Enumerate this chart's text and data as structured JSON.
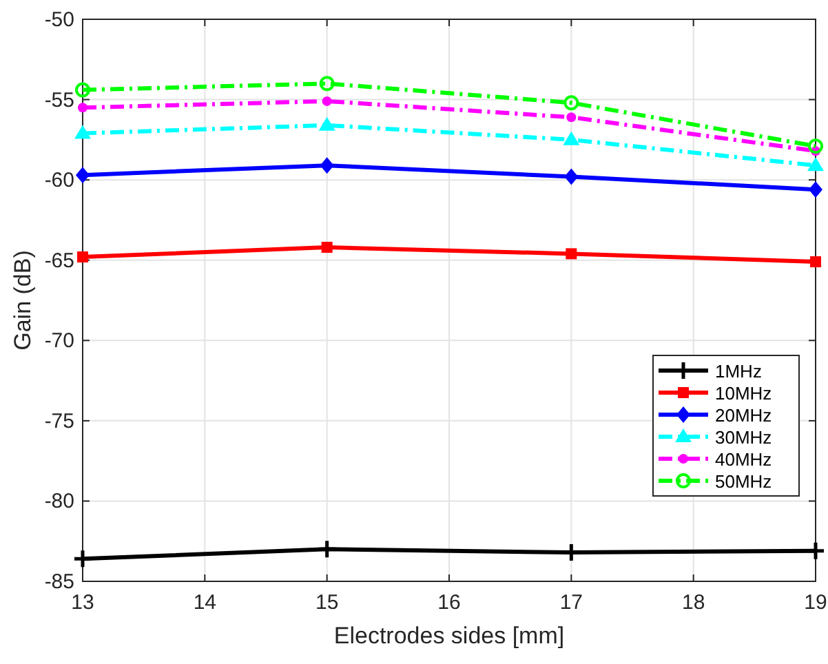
{
  "chart_data": {
    "type": "line",
    "xlabel": "Electrodes sides [mm]",
    "ylabel": "Gain (dB)",
    "x": [
      13,
      15,
      17,
      19
    ],
    "xlim": [
      13,
      19
    ],
    "xticks": [
      13,
      14,
      15,
      16,
      17,
      18,
      19
    ],
    "ylim": [
      -85,
      -50
    ],
    "yticks": [
      -85,
      -80,
      -75,
      -70,
      -65,
      -60,
      -55,
      -50
    ],
    "grid": true,
    "legend": "right",
    "series": [
      {
        "name": "1MHz",
        "color": "#000000",
        "values": [
          -83.6,
          -83.0,
          -83.2,
          -83.1
        ],
        "marker": "cross",
        "line_style": "solid"
      },
      {
        "name": "10MHz",
        "color": "#ff0000",
        "values": [
          -64.8,
          -64.2,
          -64.6,
          -65.1
        ],
        "marker": "square",
        "line_style": "solid"
      },
      {
        "name": "20MHz",
        "color": "#0000ff",
        "values": [
          -59.7,
          -59.1,
          -59.8,
          -60.6
        ],
        "marker": "diamond",
        "line_style": "solid"
      },
      {
        "name": "30MHz",
        "color": "#00ffff",
        "values": [
          -57.1,
          -56.6,
          -57.5,
          -59.1
        ],
        "marker": "triangle",
        "line_style": "dashed"
      },
      {
        "name": "40MHz",
        "color": "#ff00ff",
        "values": [
          -55.5,
          -55.1,
          -56.1,
          -58.2
        ],
        "marker": "circle",
        "line_style": "dashed"
      },
      {
        "name": "50MHz",
        "color": "#00ff00",
        "values": [
          -54.4,
          -54.0,
          -55.2,
          -57.9
        ],
        "marker": "circle",
        "line_style": "dashed"
      }
    ]
  }
}
